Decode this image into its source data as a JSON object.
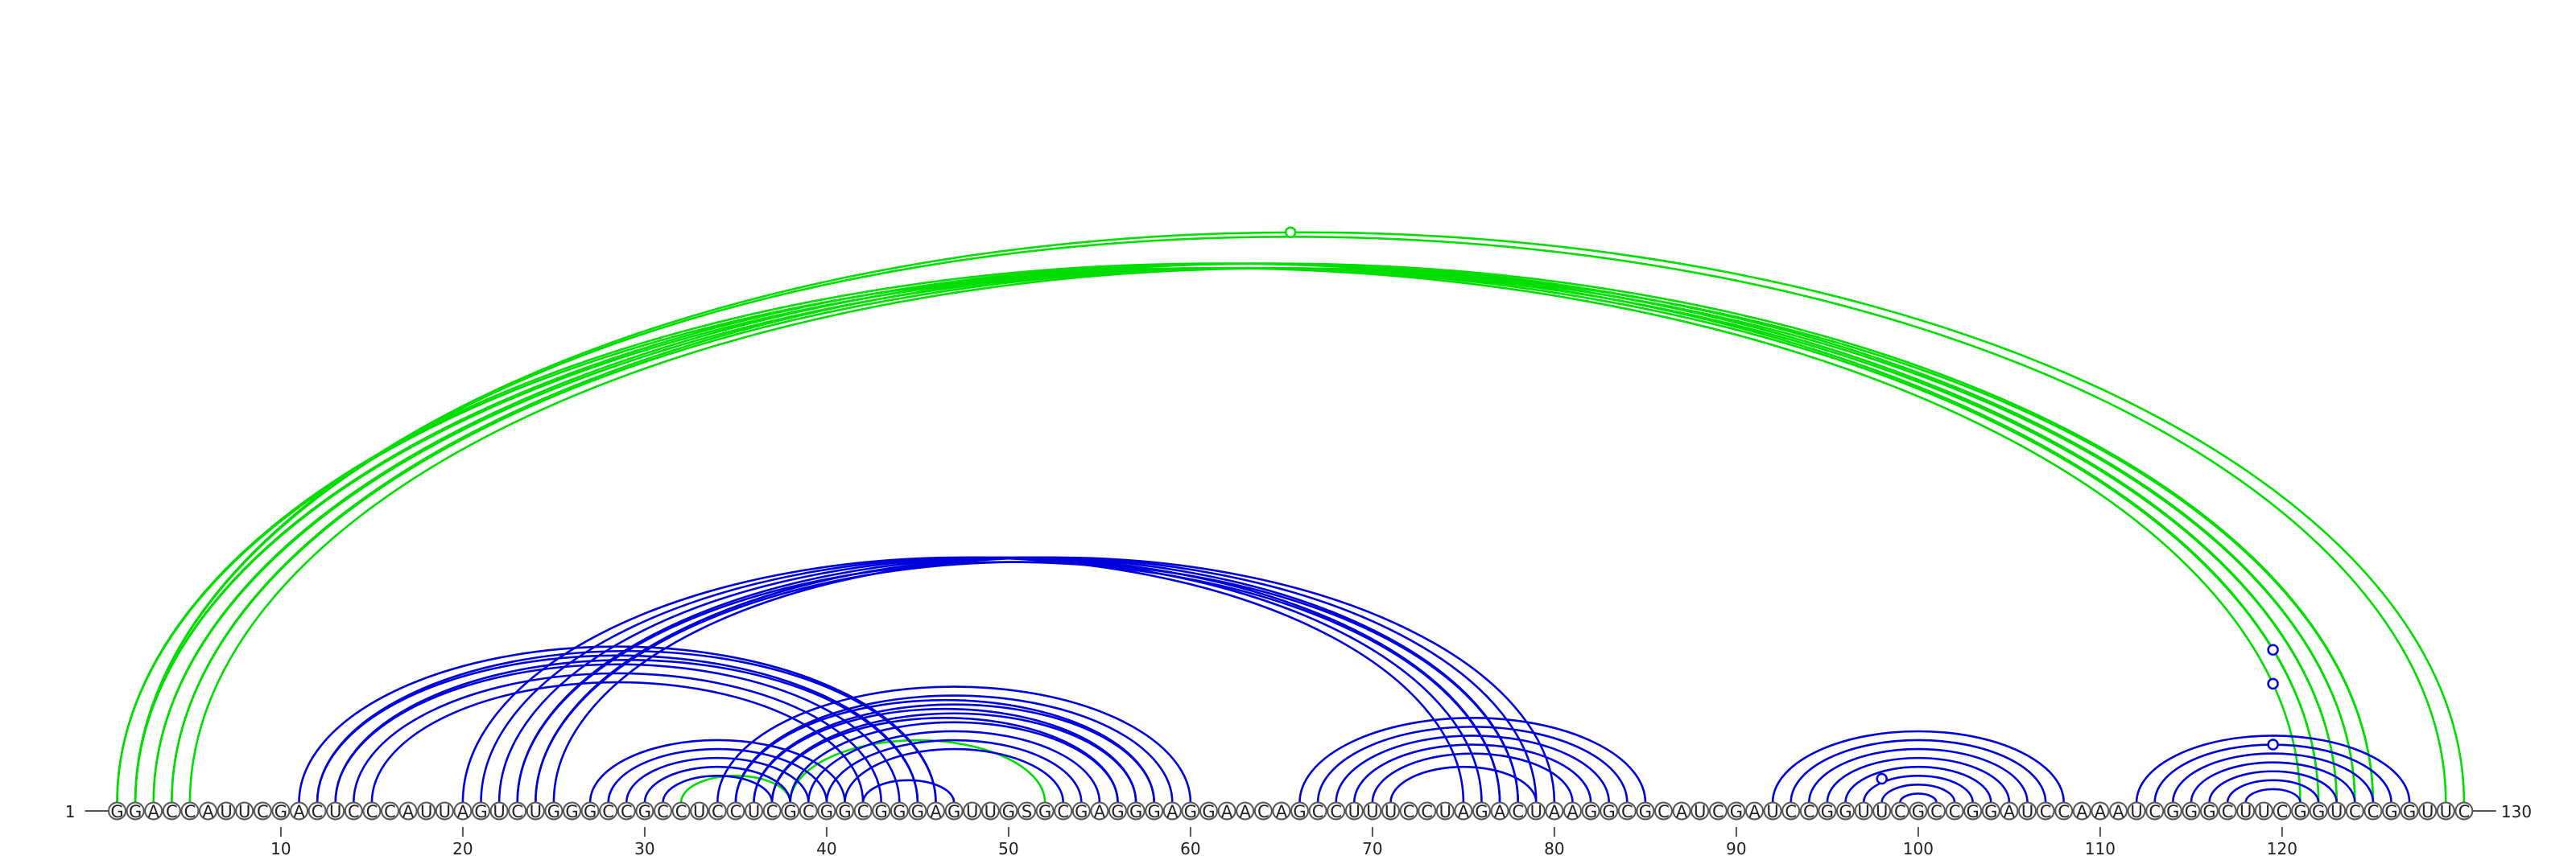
{
  "diagram": {
    "type": "rna-arc-diagram",
    "sequence": "GGACCAUUCGACUCCCAUUAGUCUGGGCCGCCUCCUCGCGGCGGGAGUUGSGCGAGGGAGGAACAGCCUUUCCUAGACUAAGGCGCAUCGAUCCGGUUCGCCGGAUCCAAAUCGGGCUUCGGUCCGGUUC",
    "start_label": "1",
    "end_label": "130",
    "ticks": [
      10,
      20,
      30,
      40,
      50,
      60,
      70,
      80,
      90,
      100,
      110,
      120
    ],
    "colors": {
      "blue": "#0000dd",
      "green": "#00dd00",
      "node_stroke": "#555555",
      "text": "#222222"
    },
    "arcs": [
      {
        "i": 1,
        "j": 121,
        "color": "green"
      },
      {
        "i": 2,
        "j": 122,
        "color": "green"
      },
      {
        "i": 3,
        "j": 123,
        "color": "green"
      },
      {
        "i": 4,
        "j": 124,
        "color": "green"
      },
      {
        "i": 5,
        "j": 125,
        "color": "green"
      },
      {
        "i": 1,
        "j": 122,
        "color": "green"
      },
      {
        "i": 2,
        "j": 123,
        "color": "green"
      },
      {
        "i": 3,
        "j": 124,
        "color": "green"
      },
      {
        "i": 4,
        "j": 125,
        "color": "green"
      },
      {
        "i": 2,
        "j": 129,
        "color": "green"
      },
      {
        "i": 2,
        "j": 130,
        "color": "green"
      },
      {
        "i": 32,
        "j": 38,
        "color": "green"
      },
      {
        "i": 38,
        "j": 52,
        "color": "green"
      },
      {
        "i": 11,
        "j": 46,
        "color": "blue"
      },
      {
        "i": 12,
        "j": 45,
        "color": "blue"
      },
      {
        "i": 13,
        "j": 44,
        "color": "blue"
      },
      {
        "i": 14,
        "j": 43,
        "color": "blue"
      },
      {
        "i": 15,
        "j": 42,
        "color": "blue"
      },
      {
        "i": 12,
        "j": 46,
        "color": "blue"
      },
      {
        "i": 13,
        "j": 45,
        "color": "blue"
      },
      {
        "i": 20,
        "j": 75,
        "color": "blue"
      },
      {
        "i": 21,
        "j": 76,
        "color": "blue"
      },
      {
        "i": 22,
        "j": 77,
        "color": "blue"
      },
      {
        "i": 23,
        "j": 78,
        "color": "blue"
      },
      {
        "i": 24,
        "j": 79,
        "color": "blue"
      },
      {
        "i": 25,
        "j": 80,
        "color": "blue"
      },
      {
        "i": 23,
        "j": 77,
        "color": "blue"
      },
      {
        "i": 24,
        "j": 78,
        "color": "blue"
      },
      {
        "i": 27,
        "j": 41,
        "color": "blue"
      },
      {
        "i": 28,
        "j": 40,
        "color": "blue"
      },
      {
        "i": 29,
        "j": 39,
        "color": "blue"
      },
      {
        "i": 30,
        "j": 38,
        "color": "blue"
      },
      {
        "i": 31,
        "j": 37,
        "color": "blue"
      },
      {
        "i": 34,
        "j": 60,
        "color": "blue"
      },
      {
        "i": 35,
        "j": 59,
        "color": "blue"
      },
      {
        "i": 36,
        "j": 58,
        "color": "blue"
      },
      {
        "i": 37,
        "j": 57,
        "color": "blue"
      },
      {
        "i": 38,
        "j": 56,
        "color": "blue"
      },
      {
        "i": 39,
        "j": 55,
        "color": "blue"
      },
      {
        "i": 40,
        "j": 54,
        "color": "blue"
      },
      {
        "i": 41,
        "j": 53,
        "color": "blue"
      },
      {
        "i": 42,
        "j": 47,
        "color": "blue"
      },
      {
        "i": 35,
        "j": 58,
        "color": "blue"
      },
      {
        "i": 36,
        "j": 57,
        "color": "blue"
      },
      {
        "i": 37,
        "j": 56,
        "color": "blue"
      },
      {
        "i": 66,
        "j": 85,
        "color": "blue"
      },
      {
        "i": 67,
        "j": 84,
        "color": "blue"
      },
      {
        "i": 68,
        "j": 83,
        "color": "blue"
      },
      {
        "i": 69,
        "j": 82,
        "color": "blue"
      },
      {
        "i": 70,
        "j": 81,
        "color": "blue"
      },
      {
        "i": 71,
        "j": 79,
        "color": "blue"
      },
      {
        "i": 92,
        "j": 108,
        "color": "blue"
      },
      {
        "i": 93,
        "j": 107,
        "color": "blue"
      },
      {
        "i": 94,
        "j": 106,
        "color": "blue"
      },
      {
        "i": 95,
        "j": 105,
        "color": "blue"
      },
      {
        "i": 96,
        "j": 104,
        "color": "blue"
      },
      {
        "i": 97,
        "j": 103,
        "color": "blue"
      },
      {
        "i": 98,
        "j": 102,
        "color": "blue"
      },
      {
        "i": 99,
        "j": 101,
        "color": "blue"
      },
      {
        "i": 112,
        "j": 127,
        "color": "blue"
      },
      {
        "i": 113,
        "j": 126,
        "color": "blue"
      },
      {
        "i": 114,
        "j": 125,
        "color": "blue"
      },
      {
        "i": 115,
        "j": 124,
        "color": "blue"
      },
      {
        "i": 116,
        "j": 123,
        "color": "blue"
      },
      {
        "i": 117,
        "j": 122,
        "color": "blue"
      },
      {
        "i": 118,
        "j": 121,
        "color": "blue"
      }
    ],
    "markers": [
      {
        "x": 65.5,
        "arc_j": 130,
        "color": "green"
      },
      {
        "x": 98,
        "arc_j": 102,
        "color": "blue"
      },
      {
        "x": 119.5,
        "arc_j": 121,
        "color": "blue"
      },
      {
        "x": 119.5,
        "arc_j": 122,
        "color": "blue"
      },
      {
        "x": 119.5,
        "arc_j": 126,
        "color": "blue"
      }
    ]
  }
}
